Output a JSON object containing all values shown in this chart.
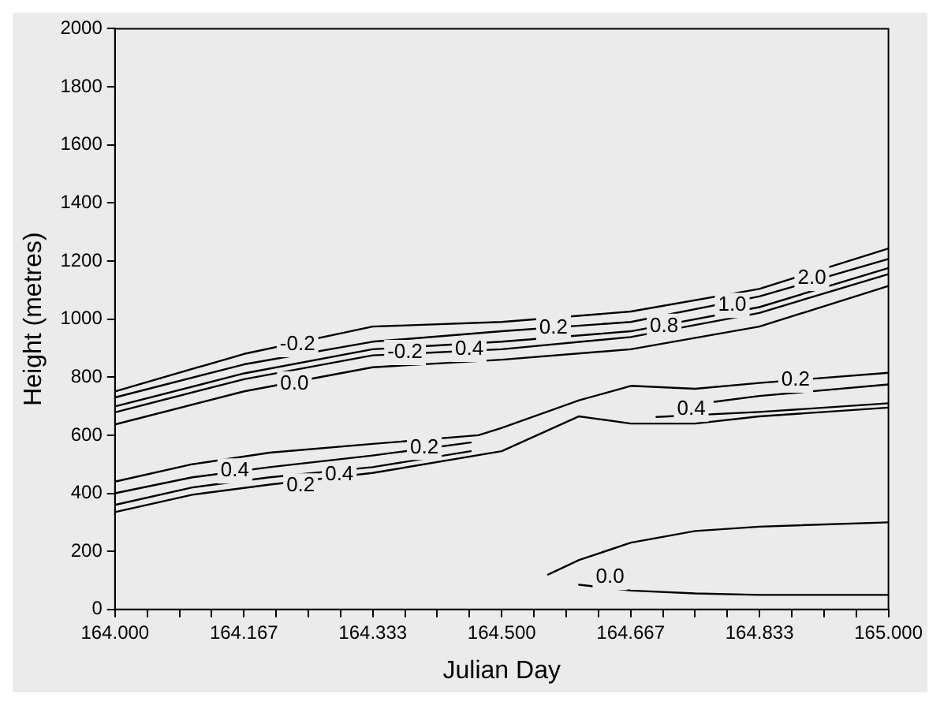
{
  "chart_data": {
    "type": "line",
    "xlabel": "Julian Day",
    "ylabel": "Height (metres)",
    "xlim": [
      164,
      165
    ],
    "ylim": [
      0,
      2000
    ],
    "xticks": [
      {
        "value": 164,
        "label": "164.000"
      },
      {
        "value": 164.04167,
        "label": null
      },
      {
        "value": 164.08333,
        "label": null
      },
      {
        "value": 164.125,
        "label": null
      },
      {
        "value": 164.16667,
        "label": "164.167"
      },
      {
        "value": 164.20833,
        "label": null
      },
      {
        "value": 164.25,
        "label": null
      },
      {
        "value": 164.29167,
        "label": null
      },
      {
        "value": 164.33333,
        "label": "164.333"
      },
      {
        "value": 164.375,
        "label": null
      },
      {
        "value": 164.41667,
        "label": null
      },
      {
        "value": 164.45833,
        "label": null
      },
      {
        "value": 164.5,
        "label": "164.500"
      },
      {
        "value": 164.54167,
        "label": null
      },
      {
        "value": 164.58333,
        "label": null
      },
      {
        "value": 164.625,
        "label": null
      },
      {
        "value": 164.66667,
        "label": "164.667"
      },
      {
        "value": 164.70833,
        "label": null
      },
      {
        "value": 164.75,
        "label": null
      },
      {
        "value": 164.79167,
        "label": null
      },
      {
        "value": 164.83333,
        "label": "164.833"
      },
      {
        "value": 164.875,
        "label": null
      },
      {
        "value": 164.91667,
        "label": null
      },
      {
        "value": 164.95833,
        "label": null
      },
      {
        "value": 165,
        "label": "165.000"
      }
    ],
    "yticks": [
      0,
      200,
      400,
      600,
      800,
      1000,
      1200,
      1400,
      1600,
      1800,
      2000
    ],
    "grid": false,
    "legend": false,
    "marker": "none",
    "line_style": "solid",
    "series": [
      {
        "color": "#000000",
        "x": [
          164.0,
          164.167,
          164.333,
          164.5,
          164.667,
          164.833,
          165.0
        ],
        "values": [
          751,
          880,
          974,
          990,
          1026,
          1104,
          1243
        ]
      },
      {
        "color": "#000000",
        "x": [
          164.0,
          164.167,
          164.333,
          164.5,
          164.667,
          164.833,
          165.0
        ],
        "values": [
          730,
          844,
          922,
          958,
          990,
          1078,
          1207
        ]
      },
      {
        "color": "#000000",
        "x": [
          164.0,
          164.167,
          164.333,
          164.5,
          164.667,
          164.833,
          165.0
        ],
        "values": [
          699,
          813,
          896,
          922,
          958,
          1041,
          1176
        ]
      },
      {
        "color": "#000000",
        "x": [
          164.0,
          164.167,
          164.333,
          164.5,
          164.667,
          164.833,
          165.0
        ],
        "values": [
          679,
          793,
          875,
          896,
          938,
          1021,
          1155
        ]
      },
      {
        "color": "#000000",
        "x": [
          164.0,
          164.167,
          164.333,
          164.5,
          164.667,
          164.833,
          165.0
        ],
        "values": [
          637,
          751,
          834,
          860,
          896,
          974,
          1114
        ]
      },
      {
        "color": "#000000",
        "x": [
          164.0,
          164.1,
          164.2,
          164.333,
          164.47,
          164.5,
          164.6,
          164.667,
          164.75,
          164.833,
          165.0
        ],
        "values": [
          440,
          500,
          540,
          570,
          600,
          625,
          720,
          770,
          760,
          780,
          815
        ]
      },
      {
        "color": "#000000",
        "x": [
          164.0,
          164.1,
          164.2,
          164.333,
          164.46
        ],
        "values": [
          400,
          455,
          490,
          530,
          575
        ]
      },
      {
        "color": "#000000",
        "x": [
          164.0,
          164.1,
          164.2,
          164.333,
          164.46
        ],
        "values": [
          360,
          420,
          455,
          490,
          545
        ]
      },
      {
        "color": "#000000",
        "x": [
          164.0,
          164.1,
          164.2,
          164.333,
          164.5,
          164.6,
          164.667,
          164.75,
          164.833,
          165.0
        ],
        "values": [
          335,
          395,
          430,
          470,
          545,
          665,
          640,
          640,
          665,
          695
        ]
      },
      {
        "color": "#000000",
        "x": [
          164.775,
          164.833,
          165.0
        ],
        "values": [
          715,
          735,
          775
        ]
      },
      {
        "color": "#000000",
        "x": [
          164.7,
          164.833,
          165.0
        ],
        "values": [
          663,
          680,
          710
        ]
      },
      {
        "color": "#000000",
        "x": [
          164.56,
          164.6,
          164.667,
          164.75,
          164.833,
          165.0
        ],
        "values": [
          120,
          170,
          230,
          270,
          285,
          300
        ]
      },
      {
        "color": "#000000",
        "x": [
          164.6,
          164.667,
          164.75,
          164.833,
          165.0
        ],
        "values": [
          85,
          65,
          55,
          50,
          50
        ]
      }
    ],
    "annotations": [
      {
        "text": "-0.2",
        "x": 164.236,
        "y": 912
      },
      {
        "text": "-0.2",
        "x": 164.375,
        "y": 885
      },
      {
        "text": "0.0",
        "x": 164.232,
        "y": 777
      },
      {
        "text": "0.4",
        "x": 164.458,
        "y": 896
      },
      {
        "text": "0.2",
        "x": 164.567,
        "y": 969
      },
      {
        "text": "0.8",
        "x": 164.71,
        "y": 975
      },
      {
        "text": "1.0",
        "x": 164.798,
        "y": 1047
      },
      {
        "text": "2.0",
        "x": 164.901,
        "y": 1140
      },
      {
        "text": "0.2",
        "x": 164.4,
        "y": 558
      },
      {
        "text": "0.4",
        "x": 164.155,
        "y": 477
      },
      {
        "text": "0.2",
        "x": 164.24,
        "y": 425
      },
      {
        "text": "0.4",
        "x": 164.29,
        "y": 463
      },
      {
        "text": "0.2",
        "x": 164.88,
        "y": 790
      },
      {
        "text": "0.4",
        "x": 164.745,
        "y": 690
      },
      {
        "text": "0.0",
        "x": 164.64,
        "y": 110
      }
    ]
  }
}
